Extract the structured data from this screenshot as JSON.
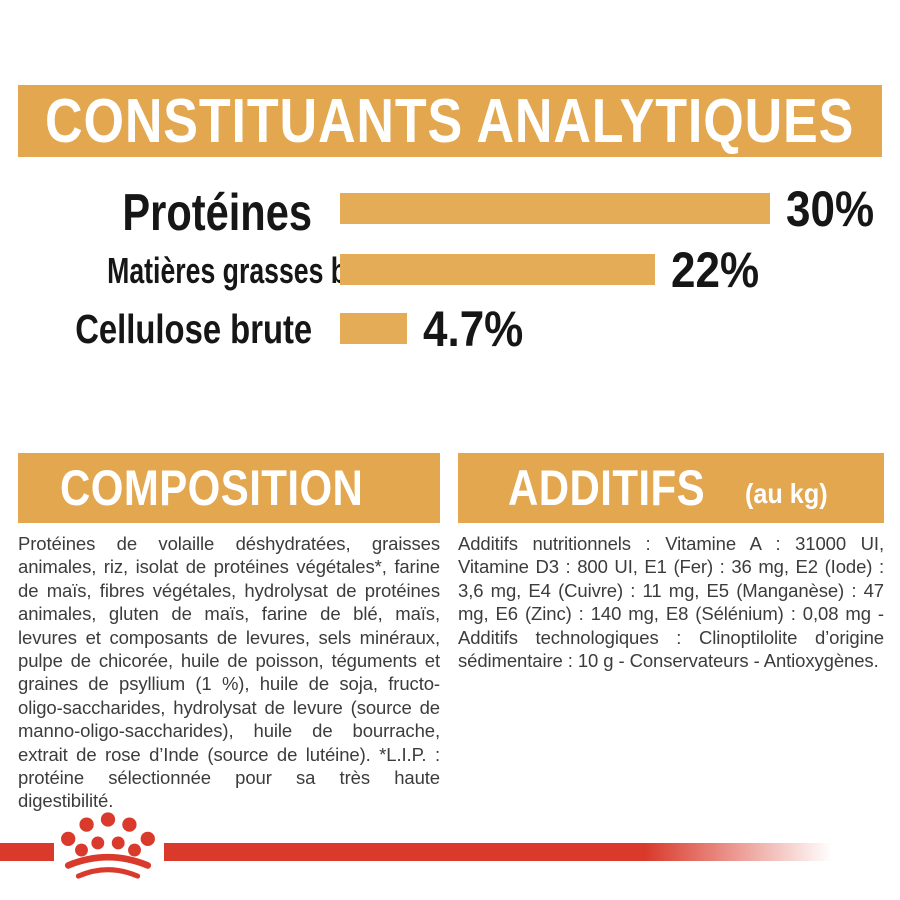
{
  "page": {
    "colors": {
      "accent": "#E2A74F",
      "bar": "#E5AC58",
      "red": "#D93A2B",
      "heading_text": "#FFFFFF",
      "label_text": "#161616",
      "body_text": "#3C3C3C",
      "background": "#FFFFFF"
    }
  },
  "header": {
    "title": "CONSTITUANTS ANALYTIQUES"
  },
  "chart_data": {
    "type": "bar",
    "orientation": "horizontal",
    "title": "CONSTITUANTS ANALYTIQUES",
    "categories": [
      "Protéines",
      "Matières grasses brutes",
      "Cellulose brute"
    ],
    "values": [
      30,
      22,
      4.7
    ],
    "value_labels": [
      "30%",
      "22%",
      "4.7%"
    ],
    "unit": "%",
    "xlim": [
      0,
      30
    ],
    "grid": false,
    "legend": false,
    "bar_color": "#E5AC58"
  },
  "composition": {
    "title": "COMPOSITION",
    "body": "Protéines de volaille déshydratées, graisses animales, riz, isolat de protéines végétales*, farine de maïs, fibres végétales, hydrolysat de protéines animales, gluten de maïs, farine de blé, maïs, levures et composants de levures, sels minéraux, pulpe de chicorée, huile de poisson, téguments et graines de psyllium (1 %), huile de soja, fructo-oligo-saccharides, hydrolysat de levure (source de manno-oligo-saccharides), huile de bourrache, extrait de rose d’Inde (source de lutéine). *L.I.P. : protéine sélectionnée pour sa très haute digestibilité."
  },
  "additifs": {
    "title": "ADDITIFS",
    "subtitle": "(au kg)",
    "body": "Additifs nutritionnels : Vitamine A : 31000 UI, Vitamine D3 : 800 UI, E1 (Fer) : 36 mg, E2 (Iode) : 3,6 mg, E4 (Cuivre) : 11 mg, E5 (Manganèse) : 47 mg, E6 (Zinc) : 140 mg, E8 (Sélénium) : 0,08 mg - Additifs technologiques : Clinoptilolite d’origine sédimentaire : 10 g - Conservateurs - Antioxygènes."
  },
  "footer": {
    "logo": "royal-canin-crown"
  }
}
